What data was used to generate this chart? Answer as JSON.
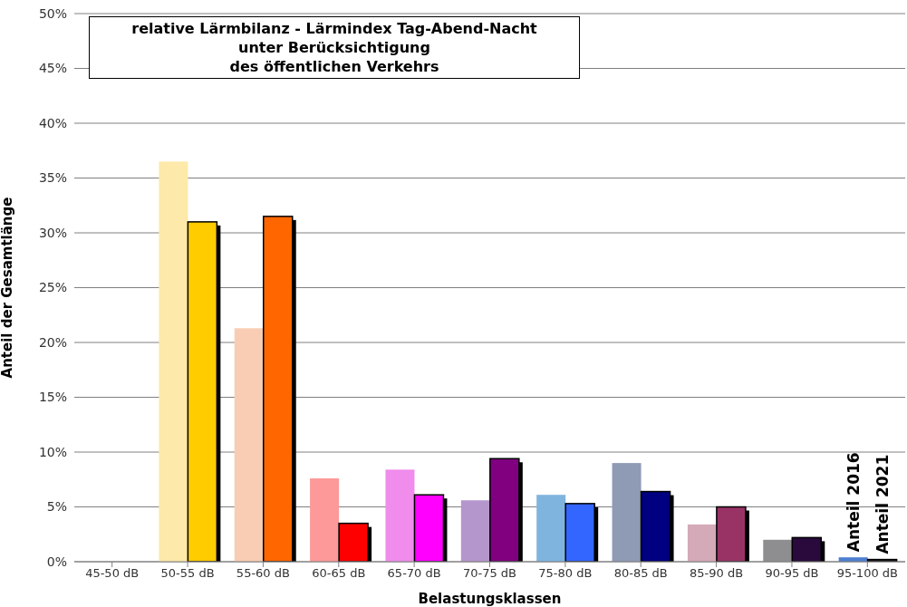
{
  "chart_data": {
    "type": "bar",
    "title": "relative Lärmbilanz - Lärmindex Tag-Abend-Nacht\nunter Berücksichtigung\ndes öffentlichen Verkehrs",
    "xlabel": "Belastungsklassen",
    "ylabel": "Anteil der Gesamtlänge",
    "categories": [
      "45-50 dB",
      "50-55 dB",
      "55-60 dB",
      "60-65 dB",
      "65-70 dB",
      "70-75 dB",
      "75-80 dB",
      "80-85 dB",
      "85-90 dB",
      "90-95 dB",
      "95-100 dB"
    ],
    "series": [
      {
        "name": "Anteil 2016",
        "values": [
          0,
          36.5,
          21.3,
          7.6,
          8.4,
          5.6,
          6.1,
          9.0,
          3.4,
          2.0,
          0.4
        ],
        "colors": [
          "#fde9a9",
          "#fde9a9",
          "#f8cdb4",
          "#fd9999",
          "#ef8cec",
          "#b496cc",
          "#7fb4de",
          "#8f9ab5",
          "#d4a9b8",
          "#8e8e90",
          "#4f7fcf"
        ]
      },
      {
        "name": "Anteil 2021",
        "values": [
          0,
          31.0,
          31.5,
          3.5,
          6.1,
          9.4,
          5.3,
          6.4,
          5.0,
          2.2,
          0.2
        ],
        "colors": [
          "#ffcc00",
          "#ffcc00",
          "#ff6600",
          "#ff0000",
          "#ff00ff",
          "#800080",
          "#3366ff",
          "#000080",
          "#993366",
          "#2a0a3c",
          "#1a1a1a"
        ]
      }
    ],
    "ylim": [
      0,
      50
    ],
    "yticks": [
      {
        "value": 0,
        "label": "0%"
      },
      {
        "value": 5,
        "label": "5%"
      },
      {
        "value": 10,
        "label": "10%"
      },
      {
        "value": 15,
        "label": "15%"
      },
      {
        "value": 20,
        "label": "20%"
      },
      {
        "value": 25,
        "label": "25%"
      },
      {
        "value": 30,
        "label": "30%"
      },
      {
        "value": 35,
        "label": "35%"
      },
      {
        "value": 40,
        "label": "40%"
      },
      {
        "value": 45,
        "label": "45%"
      },
      {
        "value": 50,
        "label": "50%"
      }
    ],
    "grid": "y",
    "legend": false
  }
}
